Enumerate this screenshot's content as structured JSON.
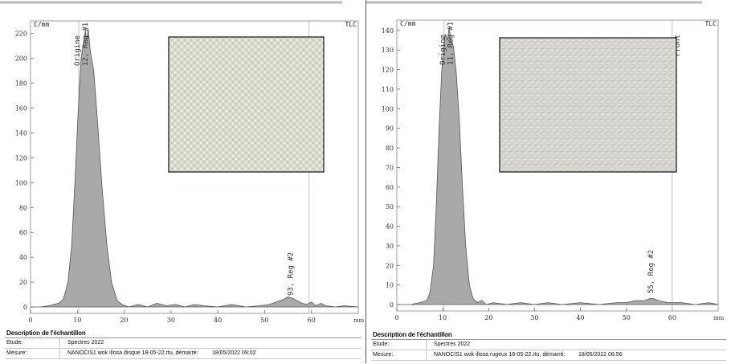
{
  "panels": [
    {
      "id": "left",
      "texture_color": "#d4d9c9",
      "chart_data": {
        "type": "area",
        "ylabel": "C/mm",
        "xlabel": "mm",
        "corner_label": "TLC",
        "xlim": [
          0,
          70
        ],
        "ylim": [
          0,
          225
        ],
        "x_ticks": [
          0,
          10,
          20,
          30,
          40,
          50,
          60
        ],
        "y_ticks": [
          0,
          20,
          40,
          60,
          80,
          100,
          120,
          140,
          160,
          180,
          200,
          220
        ],
        "annotations": [
          {
            "text": "Origine",
            "x": 10.5
          },
          {
            "text": "12, Reg #1",
            "x": 12.2
          },
          {
            "text": "93, Reg #2",
            "x": 56
          }
        ],
        "front_x": 59.5,
        "points": [
          [
            0,
            0
          ],
          [
            2,
            0
          ],
          [
            4,
            1
          ],
          [
            5,
            2
          ],
          [
            6,
            3
          ],
          [
            7,
            6
          ],
          [
            8,
            20
          ],
          [
            8.8,
            50
          ],
          [
            9.6,
            110
          ],
          [
            10.2,
            160
          ],
          [
            10.8,
            200
          ],
          [
            11.2,
            210
          ],
          [
            11.7,
            222
          ],
          [
            12.0,
            214
          ],
          [
            12.3,
            224
          ],
          [
            12.8,
            205
          ],
          [
            13.5,
            190
          ],
          [
            14.3,
            150
          ],
          [
            15.3,
            95
          ],
          [
            16.3,
            50
          ],
          [
            17.3,
            20
          ],
          [
            18.5,
            5
          ],
          [
            19.5,
            2
          ],
          [
            21,
            0
          ],
          [
            23,
            2
          ],
          [
            25,
            0
          ],
          [
            27,
            3
          ],
          [
            29,
            1
          ],
          [
            31,
            2
          ],
          [
            33,
            0
          ],
          [
            35,
            2
          ],
          [
            37,
            1
          ],
          [
            40,
            0
          ],
          [
            43,
            2
          ],
          [
            46,
            0
          ],
          [
            49,
            1
          ],
          [
            51,
            2
          ],
          [
            52.5,
            4
          ],
          [
            54,
            6
          ],
          [
            55,
            8
          ],
          [
            56,
            7
          ],
          [
            57,
            5
          ],
          [
            58,
            3
          ],
          [
            59,
            2
          ],
          [
            60,
            4
          ],
          [
            61,
            1
          ],
          [
            62,
            3
          ],
          [
            63,
            1
          ],
          [
            65,
            0
          ],
          [
            67,
            1
          ],
          [
            70,
            0
          ]
        ]
      },
      "description": {
        "title": "Description de l'échantillon",
        "rows": [
          {
            "label": "Etude:",
            "value": "Spectres 2022",
            "date": ""
          },
          {
            "label": "Mesure:",
            "value": "NANOCIS1 wok illosa disque 18-05-22.rtu, démarré:",
            "date": "18/05/2022 09:02"
          }
        ]
      }
    },
    {
      "id": "right",
      "texture_color": "#d4d2cc",
      "chart_data": {
        "type": "area",
        "ylabel": "C/mm",
        "xlabel": "mm",
        "corner_label": "TLC",
        "front_label": "Front",
        "xlim": [
          0,
          70
        ],
        "ylim": [
          0,
          142
        ],
        "x_ticks": [
          0,
          10,
          20,
          30,
          40,
          50,
          60
        ],
        "y_ticks": [
          0,
          10,
          20,
          30,
          40,
          50,
          60,
          70,
          80,
          90,
          100,
          110,
          120,
          130,
          140
        ],
        "annotations": [
          {
            "text": "Origine",
            "x": 10.5
          },
          {
            "text": "11, Reg #1",
            "x": 12.2
          },
          {
            "text": "55, Reg #2",
            "x": 55.8
          }
        ],
        "front_x": 60,
        "points": [
          [
            0,
            0
          ],
          [
            3,
            0
          ],
          [
            5,
            1
          ],
          [
            6.5,
            2
          ],
          [
            7.2,
            6
          ],
          [
            8,
            20
          ],
          [
            8.6,
            50
          ],
          [
            9.2,
            90
          ],
          [
            9.8,
            120
          ],
          [
            10.2,
            133
          ],
          [
            10.6,
            138
          ],
          [
            11,
            135
          ],
          [
            11.4,
            141
          ],
          [
            11.8,
            136
          ],
          [
            12.3,
            132
          ],
          [
            12.9,
            120
          ],
          [
            13.6,
            95
          ],
          [
            14.3,
            60
          ],
          [
            15,
            30
          ],
          [
            15.8,
            10
          ],
          [
            16.6,
            3
          ],
          [
            17.5,
            1
          ],
          [
            18.5,
            2
          ],
          [
            19.5,
            0
          ],
          [
            21,
            1
          ],
          [
            24,
            0
          ],
          [
            27,
            1
          ],
          [
            30,
            0
          ],
          [
            33,
            1
          ],
          [
            36,
            0
          ],
          [
            40,
            1
          ],
          [
            44,
            0
          ],
          [
            48,
            1
          ],
          [
            50,
            1
          ],
          [
            52,
            2
          ],
          [
            54,
            2
          ],
          [
            55,
            3
          ],
          [
            56,
            3
          ],
          [
            57,
            2
          ],
          [
            59,
            1
          ],
          [
            62,
            1
          ],
          [
            65,
            0
          ],
          [
            68,
            1
          ],
          [
            70,
            0
          ]
        ]
      },
      "description": {
        "title": "Description de l'échantillon",
        "rows": [
          {
            "label": "Etude:",
            "value": "Spectres 2022",
            "date": ""
          },
          {
            "label": "Mesure:",
            "value": "NANOCIS1 wok illosa rugeux  18-05-22.rtu, démarré:",
            "date": "18/05/2022  08:56"
          }
        ]
      }
    }
  ]
}
